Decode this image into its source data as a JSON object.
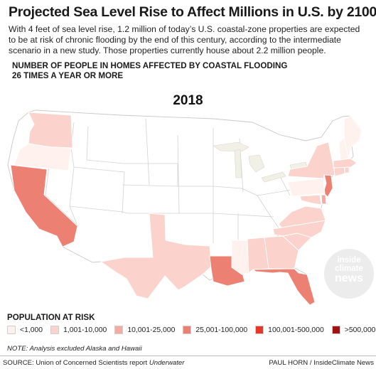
{
  "title": "Projected Sea Level Rise to Affect Millions in U.S. by 2100",
  "description": "With 4 feet of sea level rise, 1.2 million of today’s U.S. coastal-zone properties are expected to be at risk of chronic flooding by the end of this century, according to the intermediate scenario in a new study. Those properties currently house about 2.2 million people.",
  "subheading": "Number of people in homes affected by coastal flooding 26 times a year or more",
  "year": "2018",
  "watermark": {
    "line1": "inside",
    "line2": "climate",
    "line3": "news"
  },
  "legend": {
    "title": "POPULATION AT RISK",
    "items": [
      {
        "label": "<1,000",
        "color": "#fff1ee"
      },
      {
        "label": "1,001-10,000",
        "color": "#fbd3cc"
      },
      {
        "label": "10,001-25,000",
        "color": "#f4aca2"
      },
      {
        "label": "25,001-100,000",
        "color": "#ec8073"
      },
      {
        "label": "100,001-500,000",
        "color": "#e8372a"
      },
      {
        "label": ">500,000",
        "color": "#a50e12"
      }
    ]
  },
  "states": {
    "WA": "1,001-10,000",
    "OR": "<1,000",
    "CA": "25,001-100,000",
    "TX": "1,001-10,000",
    "LA": "25,001-100,000",
    "MS": "<1,000",
    "AL": "1,001-10,000",
    "GA": "1,001-10,000",
    "FL": "25,001-100,000",
    "SC": "1,001-10,000",
    "NC": "1,001-10,000",
    "VA": "1,001-10,000",
    "MD": "1,001-10,000",
    "DE": "10,001-25,000",
    "NJ": "25,001-100,000",
    "PA": "<1,000",
    "NY": "1,001-10,000",
    "CT": "1,001-10,000",
    "RI": "1,001-10,000",
    "MA": "1,001-10,000",
    "NH": "<1,000",
    "ME": "<1,000"
  },
  "note": "NOTE: Analysis excluded Alaska and Hawaii",
  "source_prefix": "SOURCE: Union of Concerned Scientists report ",
  "source_title": "Underwater",
  "credit": "PAUL HORN / InsideClimate News"
}
